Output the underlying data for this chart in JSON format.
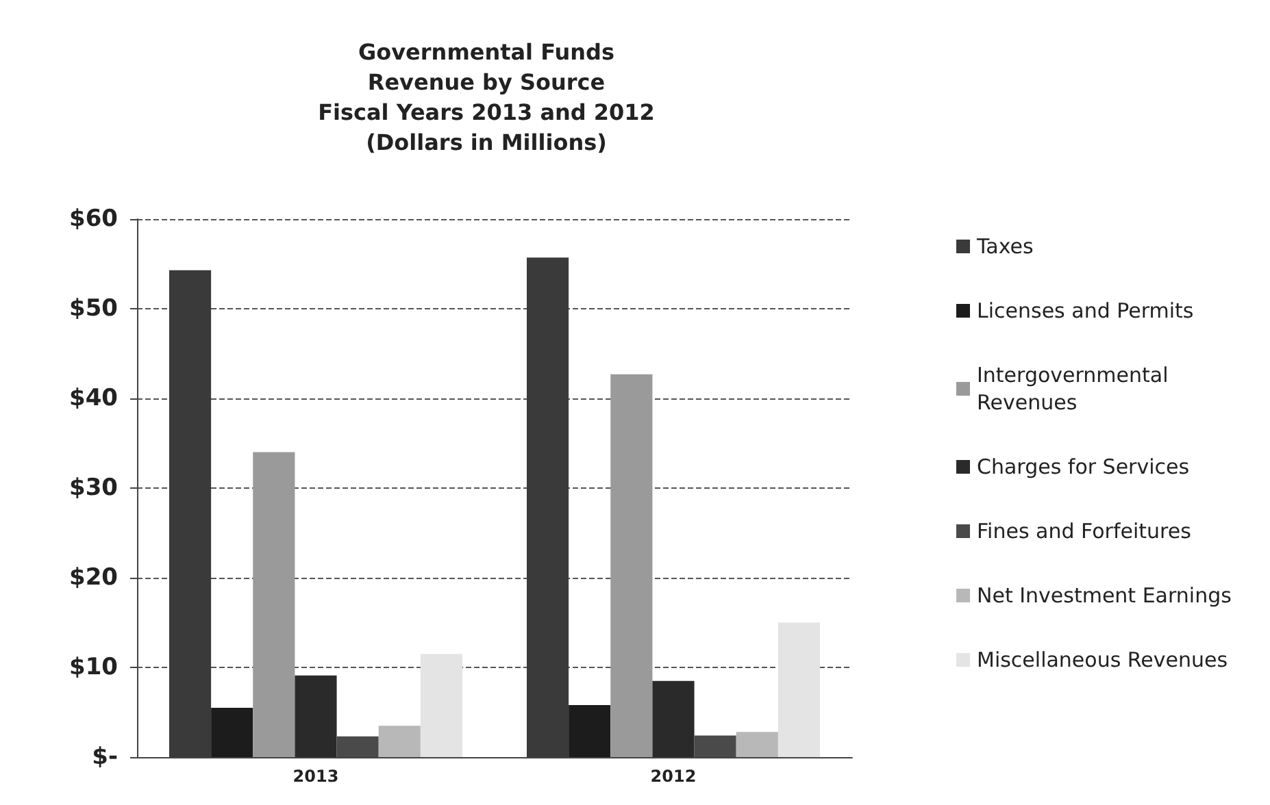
{
  "chart_data": {
    "type": "bar",
    "title": "Governmental Funds\nRevenue by Source\nFiscal Years 2013 and 2012\n(Dollars in Millions)",
    "categories": [
      "2013",
      "2012"
    ],
    "series": [
      {
        "name": "Taxes",
        "color": "#3a3a3a",
        "values": [
          54.3,
          55.7
        ]
      },
      {
        "name": "Licenses and Permits",
        "color": "#1c1c1c",
        "values": [
          5.5,
          5.8
        ]
      },
      {
        "name": "Intergovernmental Revenues",
        "color": "#9a9a9a",
        "values": [
          34,
          42.7
        ]
      },
      {
        "name": "Charges for Services",
        "color": "#2a2a2a",
        "values": [
          9.1,
          8.5
        ]
      },
      {
        "name": "Fines and Forfeitures",
        "color": "#4a4a4a",
        "values": [
          2.3,
          2.4
        ]
      },
      {
        "name": "Net Investment Earnings",
        "color": "#b8b8b8",
        "values": [
          3.5,
          2.8
        ]
      },
      {
        "name": "Miscellaneous Revenues",
        "color": "#e4e4e4",
        "values": [
          11.5,
          15
        ]
      }
    ],
    "ylim": [
      0,
      60
    ],
    "yticks": [
      {
        "value": 0,
        "label": "$-"
      },
      {
        "value": 10,
        "label": "$10"
      },
      {
        "value": 20,
        "label": "$20"
      },
      {
        "value": 30,
        "label": "$30"
      },
      {
        "value": 40,
        "label": "$40"
      },
      {
        "value": 50,
        "label": "$50"
      },
      {
        "value": 60,
        "label": "$60"
      }
    ],
    "grid": "y",
    "legend": "right"
  }
}
